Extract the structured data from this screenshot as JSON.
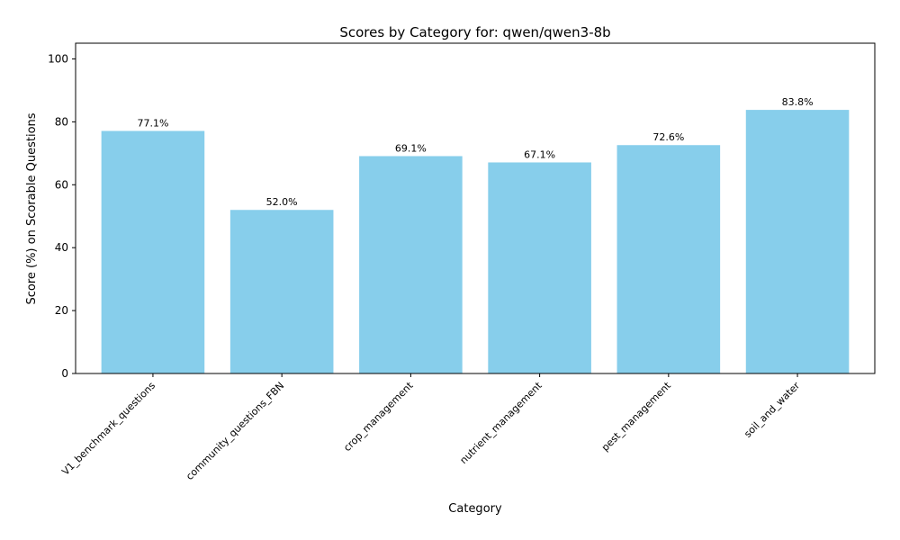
{
  "chart_data": {
    "type": "bar",
    "title": "Scores by Category for: qwen/qwen3-8b",
    "xlabel": "Category",
    "ylabel": "Score (%) on Scorable Questions",
    "categories": [
      "V1_benchmark_questions",
      "community_questions_FBN",
      "crop_management",
      "nutrient_management",
      "pest_management",
      "soil_and_water"
    ],
    "values": [
      77.1,
      52.0,
      69.1,
      67.1,
      72.6,
      83.8
    ],
    "data_labels": [
      "77.1%",
      "52.0%",
      "69.1%",
      "67.1%",
      "72.6%",
      "83.8%"
    ],
    "ylim": [
      0,
      105
    ],
    "yticks": [
      0,
      20,
      40,
      60,
      80,
      100
    ],
    "bar_color": "#87ceeb",
    "grid": false,
    "legend": "none"
  }
}
